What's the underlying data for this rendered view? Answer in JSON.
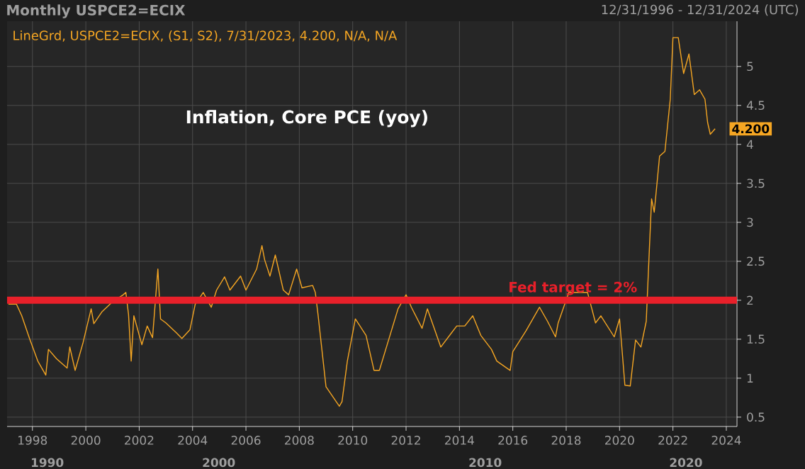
{
  "chart_data": {
    "type": "line",
    "title": "Monthly USPCE2=ECIX",
    "subtitle": "12/31/1996 - 12/31/2024 (UTC)",
    "annotations": [
      "LineGrd, USPCE2=ECIX, (S1, S2), 7/31/2023, 4.200, N/A, N/A",
      "Inflation, Core PCE (yoy)",
      "1990",
      "2000",
      "2010",
      "2020",
      {
        "text": "4.200",
        "x": 2023.58,
        "y": 4.2
      }
    ],
    "x": [
      1997.1,
      1997.4,
      1997.6,
      1997.9,
      1998.2,
      1998.5,
      1998.6,
      1998.9,
      1999.3,
      1999.4,
      1999.6,
      1999.9,
      2000.2,
      2000.3,
      2000.6,
      2001.0,
      2001.4,
      2001.5,
      2001.6,
      2001.7,
      2001.8,
      2002.1,
      2002.3,
      2002.5,
      2002.7,
      2002.8,
      2003.0,
      2003.4,
      2003.6,
      2003.9,
      2004.1,
      2004.4,
      2004.7,
      2004.9,
      2005.2,
      2005.4,
      2005.8,
      2006.0,
      2006.4,
      2006.6,
      2006.7,
      2006.9,
      2007.1,
      2007.4,
      2007.6,
      2007.9,
      2008.1,
      2008.5,
      2008.6,
      2008.7,
      2009.0,
      2009.5,
      2009.6,
      2009.8,
      2010.1,
      2010.5,
      2010.8,
      2011.0,
      2011.7,
      2012.0,
      2012.2,
      2012.6,
      2012.8,
      2013.3,
      2013.7,
      2013.9,
      2014.2,
      2014.5,
      2014.8,
      2015.2,
      2015.4,
      2015.9,
      2016.0,
      2016.5,
      2017.0,
      2017.3,
      2017.6,
      2017.7,
      2018.1,
      2018.8,
      2019.1,
      2019.3,
      2019.8,
      2020.0,
      2020.2,
      2020.4,
      2020.6,
      2020.8,
      2021.0,
      2021.1,
      2021.2,
      2021.3,
      2021.5,
      2021.7,
      2021.9,
      2022.0,
      2022.2,
      2022.4,
      2022.6,
      2022.8,
      2023.0,
      2023.2,
      2023.3,
      2023.4,
      2023.58
    ],
    "series": [
      {
        "color": "#f5a623",
        "values": [
          1.95,
          1.95,
          1.8,
          1.5,
          1.22,
          1.04,
          1.37,
          1.25,
          1.13,
          1.4,
          1.1,
          1.46,
          1.89,
          1.7,
          1.85,
          1.98,
          2.07,
          2.1,
          1.82,
          1.22,
          1.8,
          1.43,
          1.67,
          1.52,
          2.4,
          1.76,
          1.71,
          1.58,
          1.51,
          1.62,
          1.95,
          2.1,
          1.91,
          2.13,
          2.3,
          2.13,
          2.31,
          2.13,
          2.4,
          2.7,
          2.52,
          2.31,
          2.58,
          2.13,
          2.07,
          2.4,
          2.16,
          2.19,
          2.1,
          1.82,
          0.89,
          0.64,
          0.7,
          1.22,
          1.76,
          1.55,
          1.1,
          1.1,
          1.89,
          2.07,
          1.91,
          1.64,
          1.89,
          1.4,
          1.58,
          1.67,
          1.67,
          1.8,
          1.55,
          1.37,
          1.22,
          1.1,
          1.34,
          1.61,
          1.91,
          1.73,
          1.53,
          1.71,
          2.1,
          2.1,
          1.71,
          1.8,
          1.53,
          1.76,
          0.91,
          0.9,
          1.49,
          1.4,
          1.73,
          2.52,
          3.3,
          3.13,
          3.85,
          3.91,
          4.58,
          5.37,
          5.37,
          4.91,
          5.16,
          4.64,
          4.7,
          4.58,
          4.28,
          4.13,
          4.2
        ]
      }
    ],
    "xlim": [
      1997.05,
      2024.4
    ],
    "ylim": [
      0.38,
      5.58
    ],
    "xticks": [
      1998,
      2000,
      2002,
      2004,
      2006,
      2008,
      2010,
      2012,
      2014,
      2016,
      2018,
      2020,
      2022,
      2024
    ],
    "yticks": [
      0.5,
      1,
      1.5,
      2,
      2.5,
      3,
      3.5,
      4,
      4.5,
      5
    ],
    "grid": true,
    "ref_lines": [
      {
        "axis": "y",
        "value": 2,
        "label": "Fed target = 2%",
        "color": "#e8202a"
      }
    ]
  }
}
